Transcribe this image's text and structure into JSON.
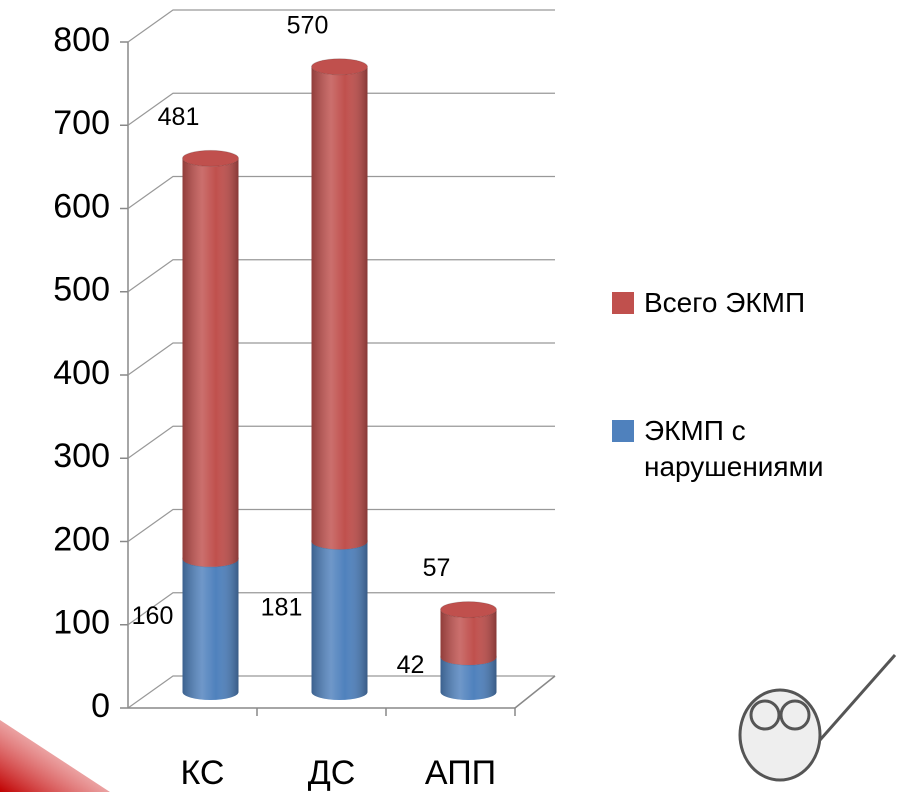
{
  "chart_data": {
    "type": "bar3d_stacked",
    "categories": [
      "КС",
      "ДС",
      "АПП"
    ],
    "series": [
      {
        "name": "ЭКМП с нарушениями",
        "color": "#4f81bd",
        "values": [
          160,
          181,
          42
        ]
      },
      {
        "name": "Всего ЭКМП",
        "color": "#c0504d",
        "values": [
          481,
          570,
          57
        ]
      }
    ],
    "ylim": [
      0,
      800
    ],
    "yticks": [
      0,
      100,
      200,
      300,
      400,
      500,
      600,
      700,
      800
    ],
    "grid": true,
    "legend": "right"
  }
}
